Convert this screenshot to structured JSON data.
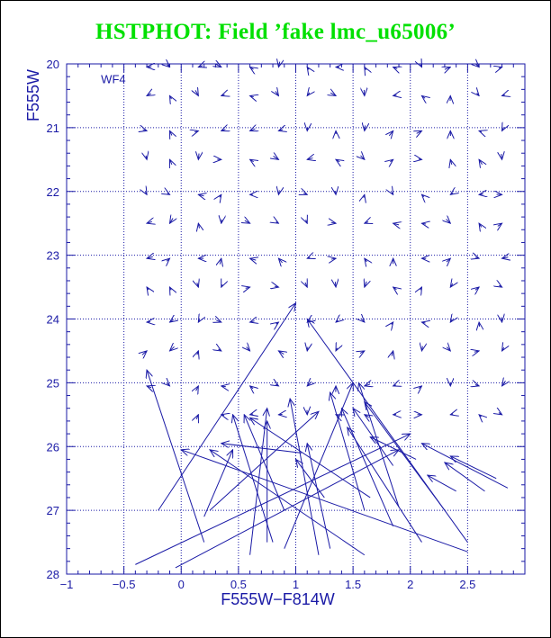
{
  "chart_data": {
    "type": "scatter",
    "title": "HSTPHOT: Field ’fake lmc_u65006’",
    "xlabel": "F555W−F814W",
    "ylabel": "F555W",
    "panel_label": "WF4",
    "xlim": [
      -1,
      3
    ],
    "ylim": [
      28,
      20
    ],
    "y_inverted": true,
    "grid": true,
    "x_gridlines": [
      -0.5,
      0,
      0.5,
      1,
      1.5,
      2,
      2.5
    ],
    "y_gridlines": [
      21,
      22,
      23,
      24,
      25,
      26,
      27
    ],
    "x_ticks": [
      {
        "value": -1,
        "label": "−1"
      },
      {
        "value": -0.5,
        "label": "−0.5"
      },
      {
        "value": 0,
        "label": "0"
      },
      {
        "value": 0.5,
        "label": "0.5"
      },
      {
        "value": 1,
        "label": "1"
      },
      {
        "value": 1.5,
        "label": "1.5"
      },
      {
        "value": 2,
        "label": "2"
      },
      {
        "value": 2.5,
        "label": "2.5"
      }
    ],
    "y_ticks": [
      {
        "value": 20,
        "label": "20"
      },
      {
        "value": 21,
        "label": "21"
      },
      {
        "value": 22,
        "label": "22"
      },
      {
        "value": 23,
        "label": "23"
      },
      {
        "value": 24,
        "label": "24"
      },
      {
        "value": 25,
        "label": "25"
      },
      {
        "value": 26,
        "label": "26"
      },
      {
        "value": 27,
        "label": "27"
      },
      {
        "value": 28,
        "label": "28"
      }
    ],
    "colors": {
      "title": "#00e000",
      "axes": "#1a1aa6",
      "vectors": "#1a1aa6"
    },
    "grid_columns": [
      -0.3,
      -0.1,
      0.15,
      0.35,
      0.6,
      0.85,
      1.1,
      1.35,
      1.6,
      1.85,
      2.1,
      2.35,
      2.6,
      2.8
    ],
    "grid_rows": [
      20.05,
      20.5,
      21.05,
      21.5,
      22.05,
      22.5,
      23.05,
      23.5,
      24.05,
      24.5,
      25.05,
      25.5
    ],
    "grid_vectors_note": "",
    "vectors": [
      {
        "x0": -0.2,
        "y0": 27.0,
        "x1": 1.0,
        "y1": 23.75
      },
      {
        "x0": 2.5,
        "y0": 27.5,
        "x1": 1.1,
        "y1": 24.0
      },
      {
        "x0": 0.2,
        "y0": 27.5,
        "x1": -0.3,
        "y1": 24.8
      },
      {
        "x0": -0.4,
        "y0": 27.85,
        "x1": 2.0,
        "y1": 25.8
      },
      {
        "x0": -0.05,
        "y0": 27.9,
        "x1": 1.9,
        "y1": 26.05
      },
      {
        "x0": 2.5,
        "y0": 27.65,
        "x1": 0.0,
        "y1": 26.05
      },
      {
        "x0": 1.6,
        "y0": 27.7,
        "x1": 0.25,
        "y1": 26.05
      },
      {
        "x0": 0.6,
        "y0": 27.7,
        "x1": 0.75,
        "y1": 25.4
      },
      {
        "x0": 0.9,
        "y0": 27.6,
        "x1": 1.5,
        "y1": 25.0
      },
      {
        "x0": 0.8,
        "y0": 27.5,
        "x1": 0.45,
        "y1": 25.5
      },
      {
        "x0": 1.2,
        "y0": 27.7,
        "x1": 0.95,
        "y1": 25.25
      },
      {
        "x0": 1.3,
        "y0": 27.6,
        "x1": 1.1,
        "y1": 25.95
      },
      {
        "x0": 0.9,
        "y0": 27.0,
        "x1": 0.55,
        "y1": 25.5
      },
      {
        "x0": 0.2,
        "y0": 27.1,
        "x1": 0.45,
        "y1": 26.05
      },
      {
        "x0": 0.75,
        "y0": 27.5,
        "x1": 0.75,
        "y1": 25.6
      },
      {
        "x0": 1.6,
        "y0": 27.0,
        "x1": 1.3,
        "y1": 25.15
      },
      {
        "x0": 1.85,
        "y0": 27.25,
        "x1": 1.4,
        "y1": 25.4
      },
      {
        "x0": 2.1,
        "y0": 27.5,
        "x1": 1.45,
        "y1": 25.7
      },
      {
        "x0": 2.3,
        "y0": 27.0,
        "x1": 1.6,
        "y1": 25.3
      },
      {
        "x0": 1.9,
        "y0": 26.95,
        "x1": 1.55,
        "y1": 25.0
      },
      {
        "x0": 0.25,
        "y0": 27.0,
        "x1": 1.2,
        "y1": 25.45
      },
      {
        "x0": 1.65,
        "y0": 26.8,
        "x1": 0.6,
        "y1": 25.55
      },
      {
        "x0": 1.85,
        "y0": 26.3,
        "x1": 1.5,
        "y1": 25.4
      },
      {
        "x0": 2.05,
        "y0": 26.2,
        "x1": 1.65,
        "y1": 25.85
      },
      {
        "x0": 2.85,
        "y0": 26.65,
        "x1": 2.1,
        "y1": 25.95
      },
      {
        "x0": 2.75,
        "y0": 26.5,
        "x1": 2.35,
        "y1": 26.15
      },
      {
        "x0": 2.65,
        "y0": 26.7,
        "x1": 2.3,
        "y1": 26.25
      },
      {
        "x0": 2.4,
        "y0": 26.7,
        "x1": 2.15,
        "y1": 26.45
      },
      {
        "x0": 1.05,
        "y0": 26.1,
        "x1": 0.35,
        "y1": 25.95
      },
      {
        "x0": 1.25,
        "y0": 26.8,
        "x1": 1.0,
        "y1": 26.2
      }
    ]
  }
}
